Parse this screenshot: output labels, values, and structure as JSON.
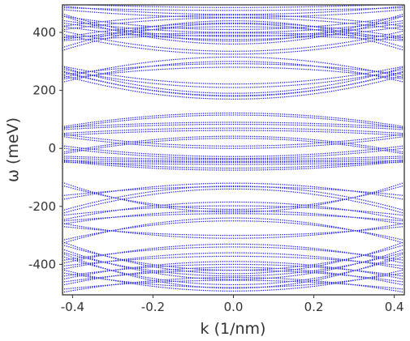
{
  "chart_data": {
    "type": "scatter",
    "title": "",
    "xlabel": "k (1/nm)",
    "ylabel": "ω (meV)",
    "xlim": [
      -0.425,
      0.425
    ],
    "ylim": [
      -505,
      495
    ],
    "xticks": [
      -0.4,
      -0.2,
      0.0,
      0.2,
      0.4
    ],
    "xtick_labels": [
      "-0.4",
      "-0.2",
      "0.0",
      "0.2",
      "0.4"
    ],
    "yticks": [
      -400,
      -200,
      0,
      200,
      400
    ],
    "ytick_labels": [
      "-400",
      "-200",
      "0",
      "200",
      "400"
    ],
    "marker": "dot",
    "color": "#0000ff",
    "grid": false,
    "series": [
      {
        "edge": [
          485,
          498
        ],
        "center": [
          476,
          486
        ]
      },
      {
        "edge": [
          478,
          490
        ],
        "center": [
          452,
          462
        ]
      },
      {
        "edge": [
          410,
          422
        ],
        "center": [
          450,
          460
        ]
      },
      {
        "edge": [
          376,
          384
        ],
        "center": [
          420,
          432
        ]
      },
      {
        "edge": [
          372,
          382
        ],
        "center": [
          390,
          398
        ]
      },
      {
        "edge": [
          455,
          462
        ],
        "center": [
          360,
          370
        ]
      },
      {
        "edge": [
          440,
          455
        ],
        "center": [
          400,
          410
        ]
      },
      {
        "edge": [
          392,
          404
        ],
        "center": [
          325,
          335
        ]
      },
      {
        "edge": [
          420,
          432
        ],
        "center": [
          376,
          386
        ]
      },
      {
        "edge": [
          340,
          350
        ],
        "center": [
          430,
          440
        ]
      },
      {
        "edge": [
          272,
          282
        ],
        "center": [
          210,
          222
        ]
      },
      {
        "edge": [
          265,
          278
        ],
        "center": [
          180,
          190
        ]
      },
      {
        "edge": [
          250,
          262
        ],
        "center": [
          170,
          182
        ]
      },
      {
        "edge": [
          240,
          255
        ],
        "center": [
          280,
          292
        ]
      },
      {
        "edge": [
          230,
          245
        ],
        "center": [
          300,
          315
        ]
      },
      {
        "edge": [
          70,
          76
        ],
        "center": [
          115,
          122
        ]
      },
      {
        "edge": [
          65,
          72
        ],
        "center": [
          83,
          90
        ]
      },
      {
        "edge": [
          45,
          52
        ],
        "center": [
          62,
          70
        ]
      },
      {
        "edge": [
          40,
          48
        ],
        "center": [
          0,
          8
        ]
      },
      {
        "edge": [
          0,
          8
        ],
        "center": [
          -35,
          -28
        ]
      },
      {
        "edge": [
          -18,
          -12
        ],
        "center": [
          35,
          42
        ]
      },
      {
        "edge": [
          -33,
          -27
        ],
        "center": [
          -45,
          -38
        ]
      },
      {
        "edge": [
          -45,
          -40
        ],
        "center": [
          -75,
          -68
        ]
      },
      {
        "edge": [
          -48,
          -42
        ],
        "center": [
          -55,
          -48
        ]
      },
      {
        "edge": [
          -130,
          -120
        ],
        "center": [
          -210,
          -220
        ]
      },
      {
        "edge": [
          -175,
          -162
        ],
        "center": [
          -120,
          -132
        ]
      },
      {
        "edge": [
          -212,
          -222
        ],
        "center": [
          -130,
          -140
        ]
      },
      {
        "edge": [
          -245,
          -230
        ],
        "center": [
          -185,
          -198
        ]
      },
      {
        "edge": [
          -260,
          -250
        ],
        "center": [
          -215,
          -225
        ]
      },
      {
        "edge": [
          -270,
          -260
        ],
        "center": [
          -300,
          -310
        ]
      },
      {
        "edge": [
          -325,
          -315
        ],
        "center": [
          -240,
          -250
        ]
      },
      {
        "edge": [
          -335,
          -325
        ],
        "center": [
          -420,
          -432
        ]
      },
      {
        "edge": [
          -360,
          -350
        ],
        "center": [
          -440,
          -452
        ]
      },
      {
        "edge": [
          -375,
          -365
        ],
        "center": [
          -470,
          -482
        ]
      },
      {
        "edge": [
          -395,
          -385
        ],
        "center": [
          -330,
          -340
        ]
      },
      {
        "edge": [
          -415,
          -405
        ],
        "center": [
          -360,
          -372
        ]
      },
      {
        "edge": [
          -430,
          -420
        ],
        "center": [
          -480,
          -492
        ]
      },
      {
        "edge": [
          -450,
          -440
        ],
        "center": [
          -390,
          -400
        ]
      },
      {
        "edge": [
          -470,
          -460
        ],
        "center": [
          -410,
          -420
        ]
      },
      {
        "edge": [
          -495,
          -485
        ],
        "center": [
          -445,
          -455
        ]
      }
    ]
  }
}
